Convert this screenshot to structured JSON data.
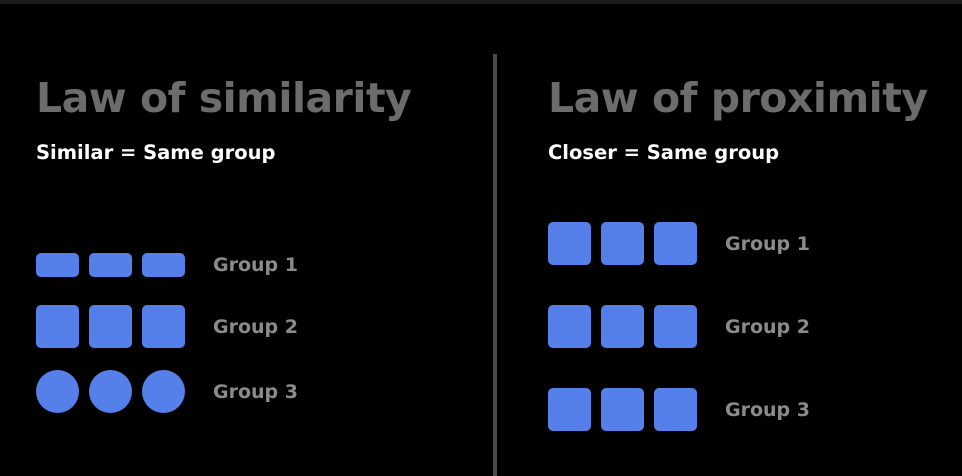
{
  "colors": {
    "background": "#000000",
    "title": "#6c6c6c",
    "subtitle": "#ffffff",
    "shape_fill": "#5680e9",
    "group_label": "#8b8b8b",
    "divider": "#4a4a4a"
  },
  "similarity": {
    "title": "Law of similarity",
    "subtitle": "Similar = Same group",
    "groups": [
      {
        "label": "Group 1",
        "shape": "rounded-rectangle",
        "count": 3
      },
      {
        "label": "Group 2",
        "shape": "rounded-square",
        "count": 3
      },
      {
        "label": "Group 3",
        "shape": "circle",
        "count": 3
      }
    ]
  },
  "proximity": {
    "title": "Law of proximity",
    "subtitle": "Closer = Same group",
    "groups": [
      {
        "label": "Group 1",
        "shape": "rounded-square",
        "count": 3
      },
      {
        "label": "Group 2",
        "shape": "rounded-square",
        "count": 3
      },
      {
        "label": "Group 3",
        "shape": "rounded-square",
        "count": 3
      }
    ]
  }
}
